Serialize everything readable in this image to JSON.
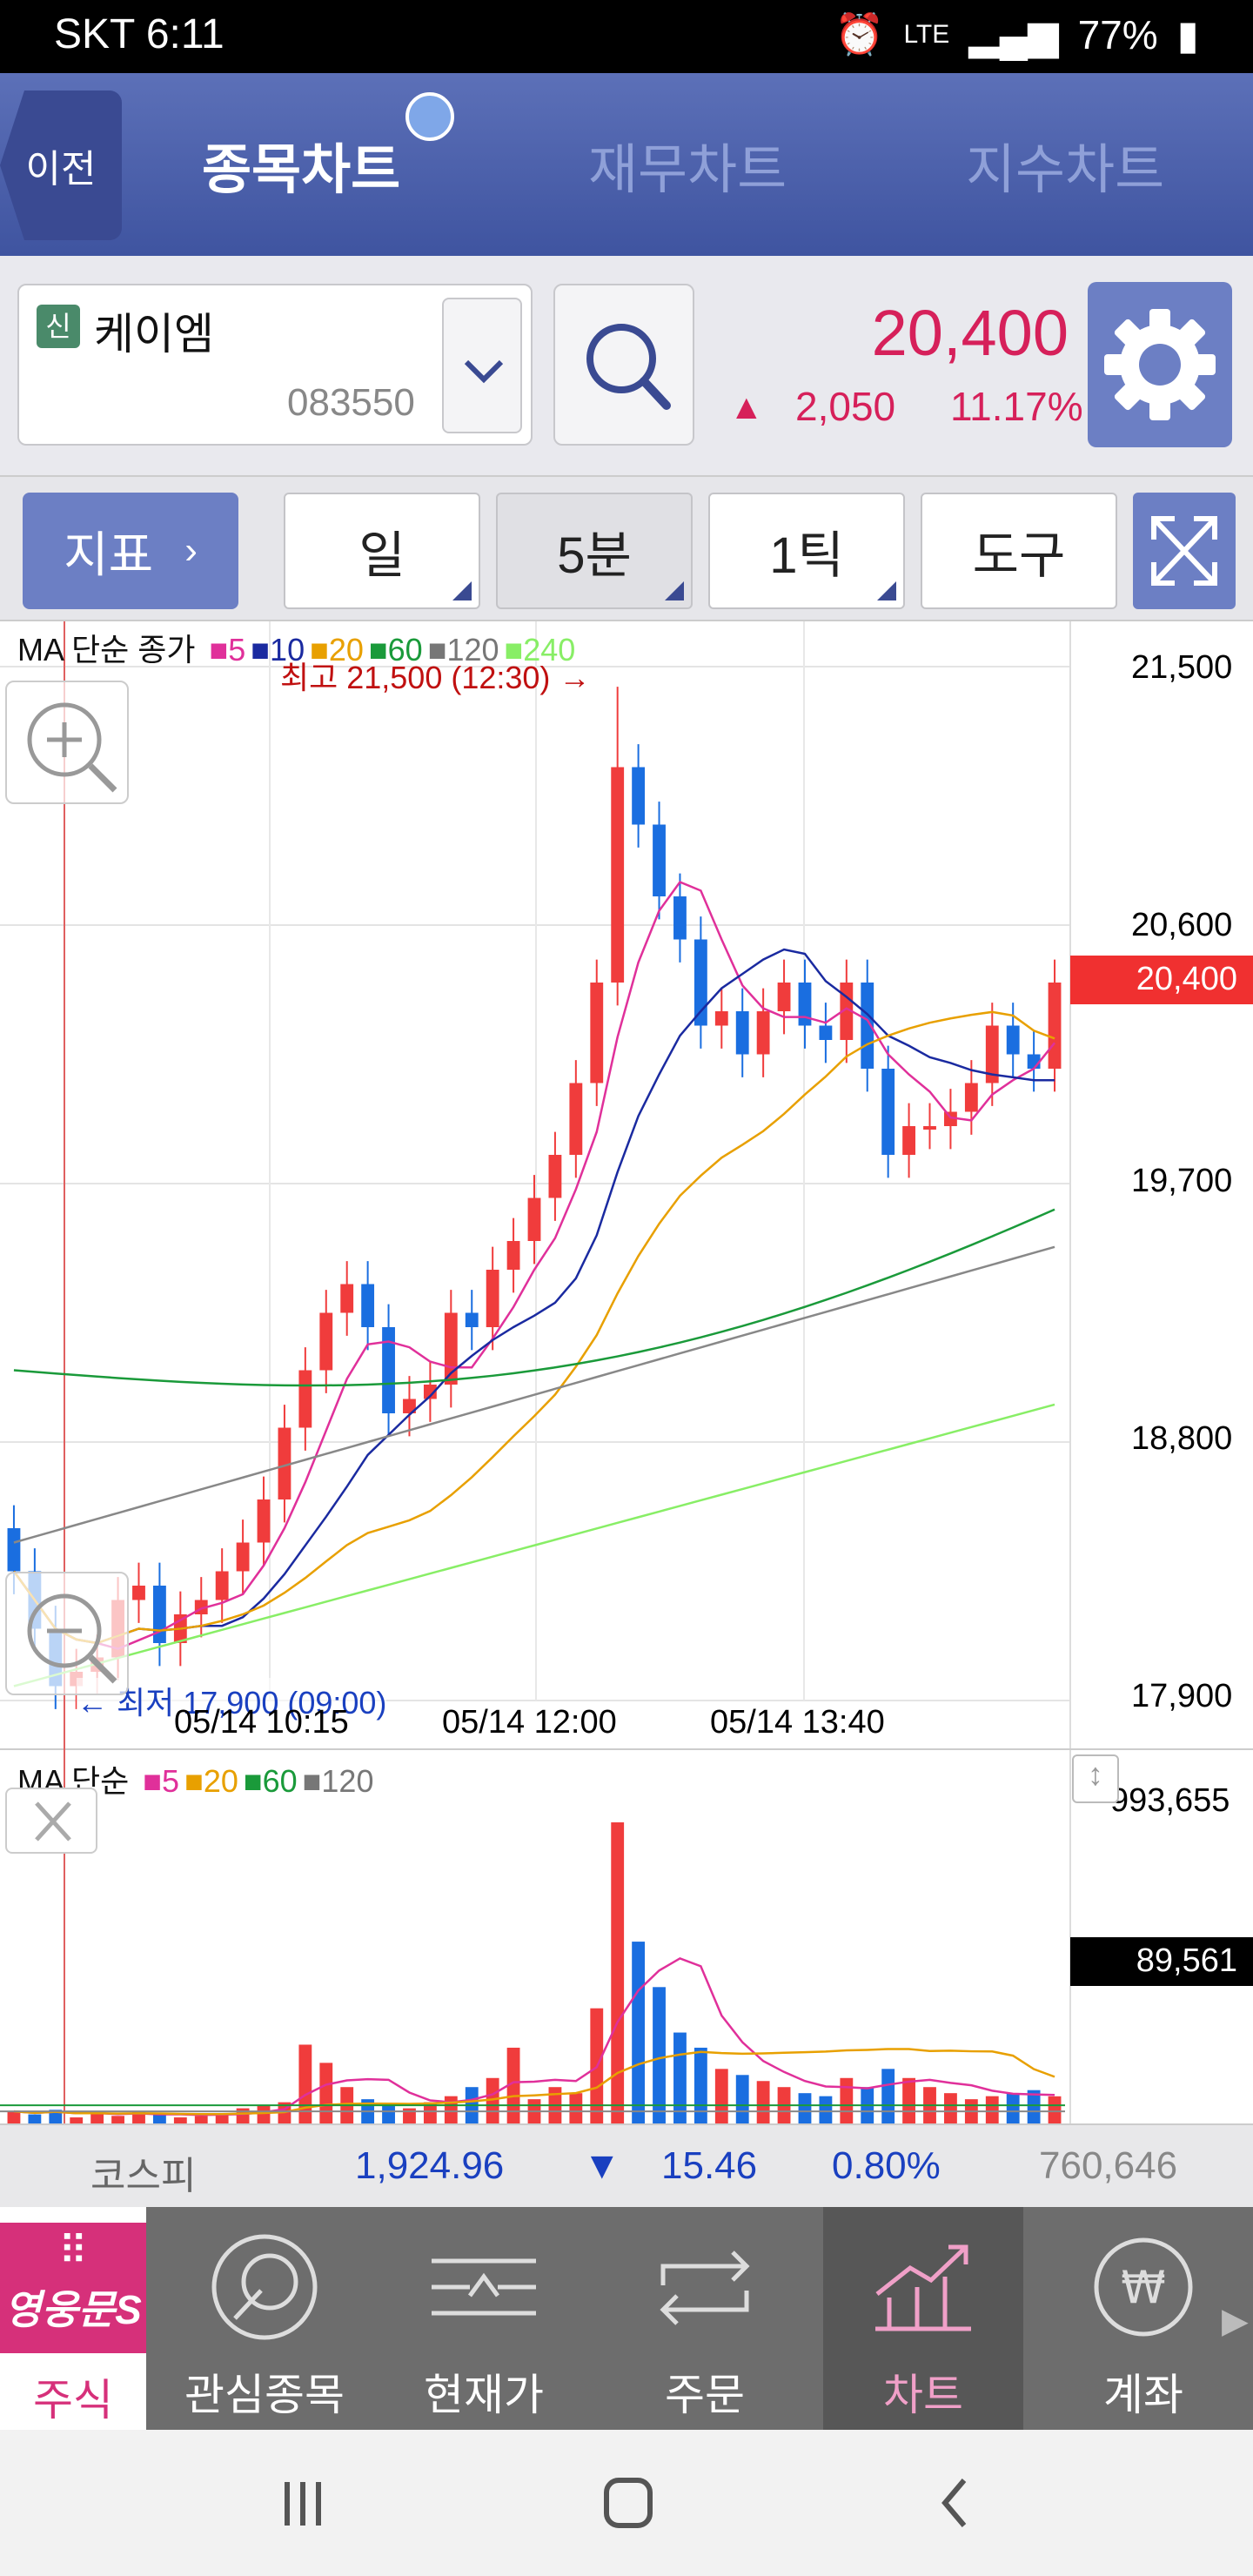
{
  "status": {
    "carrier_time": "SKT 6:11",
    "network": "LTE",
    "battery": "77%"
  },
  "header": {
    "back_label": "이전",
    "tabs": [
      {
        "label": "종목차트",
        "active": true
      },
      {
        "label": "재무차트",
        "active": false
      },
      {
        "label": "지수차트",
        "active": false
      }
    ]
  },
  "stock": {
    "badge": "신",
    "name": "케이엠",
    "code": "083550",
    "price": "20,400",
    "change_symbol": "▲",
    "change": "2,050",
    "change_pct": "11.17%"
  },
  "toolbar": {
    "indicator_label": "지표",
    "buttons": [
      {
        "label": "일",
        "selected": false
      },
      {
        "label": "5분",
        "selected": true
      },
      {
        "label": "1틱",
        "selected": false
      },
      {
        "label": "도구",
        "selected": false
      }
    ]
  },
  "price_chart": {
    "legend_title": "MA 단순 종가",
    "ma_legend": [
      {
        "label": "5",
        "color": "#e0309a"
      },
      {
        "label": "10",
        "color": "#1a2aa0"
      },
      {
        "label": "20",
        "color": "#e8a000"
      },
      {
        "label": "60",
        "color": "#1a9a3a"
      },
      {
        "label": "120",
        "color": "#777777"
      },
      {
        "label": "240",
        "color": "#88ee66"
      }
    ],
    "high_annotation": "최고 21,500 (12:30) →",
    "low_annotation": "← 최저 17,900 (09:00)",
    "y_ticks": [
      "21,500",
      "20,600",
      "19,700",
      "18,800",
      "17,900"
    ],
    "current_price_tag": "20,400",
    "x_ticks": [
      "05/14 10:15",
      "05/14 12:00",
      "05/14 13:40"
    ]
  },
  "volume_chart": {
    "legend_title": "MA 단순",
    "ma_legend": [
      {
        "label": "5",
        "color": "#e0309a"
      },
      {
        "label": "20",
        "color": "#e8a000"
      },
      {
        "label": "60",
        "color": "#1a9a3a"
      },
      {
        "label": "120",
        "color": "#777777"
      }
    ],
    "y_max": "993,655",
    "current_tag": "89,561"
  },
  "chart_data": [
    {
      "type": "candlestick",
      "title": "",
      "ylim": [
        17900,
        21500
      ],
      "x_tick_labels": [
        "05/14 10:15",
        "05/14 12:00",
        "05/14 13:40"
      ],
      "y_tick_labels": [
        "21,500",
        "20,600",
        "19,700",
        "18,800",
        "17,900"
      ],
      "close": [
        18350,
        18150,
        17950,
        18000,
        18050,
        18250,
        18300,
        18100,
        18200,
        18250,
        18350,
        18450,
        18600,
        18850,
        19050,
        19250,
        19350,
        19200,
        18900,
        18950,
        19000,
        19250,
        19200,
        19400,
        19500,
        19650,
        19800,
        20050,
        20400,
        21150,
        20950,
        20700,
        20550,
        20250,
        20300,
        20150,
        20300,
        20400,
        20250,
        20200,
        20400,
        20100,
        19800,
        19900,
        19900,
        19950,
        20050,
        20250,
        20150,
        20100,
        20400
      ]
    },
    {
      "type": "bar",
      "title": "",
      "ylim": [
        0,
        993655
      ],
      "values": [
        40000,
        30000,
        45000,
        20000,
        35000,
        25000,
        40000,
        30000,
        20000,
        25000,
        30000,
        50000,
        60000,
        70000,
        260000,
        200000,
        120000,
        80000,
        60000,
        50000,
        70000,
        90000,
        120000,
        150000,
        250000,
        80000,
        120000,
        100000,
        380000,
        993655,
        600000,
        450000,
        300000,
        250000,
        180000,
        160000,
        140000,
        120000,
        100000,
        90000,
        150000,
        120000,
        180000,
        150000,
        120000,
        100000,
        80000,
        90000,
        100000,
        110000,
        89561
      ],
      "current": 89561
    }
  ],
  "index_bar": {
    "name": "코스피",
    "value": "1,924.96",
    "direction": "▼",
    "change": "15.46",
    "pct": "0.80%",
    "volume": "760,646"
  },
  "bottom_nav": {
    "brand_lines": [
      "영웅문S"
    ],
    "brand_label": "주식",
    "items": [
      {
        "label": "관심종목",
        "icon": "star-circle-icon"
      },
      {
        "label": "현재가",
        "icon": "price-icon"
      },
      {
        "label": "주문",
        "icon": "swap-icon"
      },
      {
        "label": "차트",
        "icon": "chart-icon",
        "selected": true
      },
      {
        "label": "계좌",
        "icon": "won-icon"
      }
    ]
  }
}
